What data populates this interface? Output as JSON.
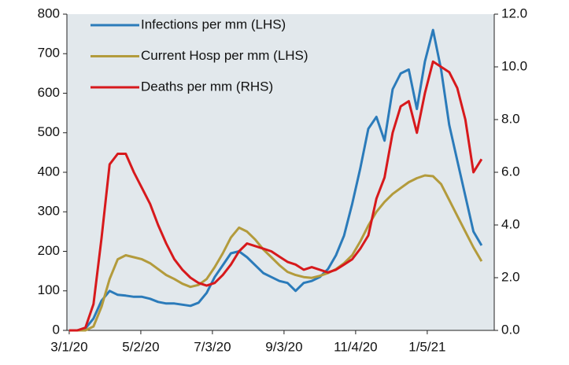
{
  "chart_data": {
    "type": "line",
    "x": [
      "3/1/20",
      "3/8/20",
      "3/15/20",
      "3/22/20",
      "3/29/20",
      "4/5/20",
      "4/12/20",
      "4/19/20",
      "4/26/20",
      "5/3/20",
      "5/10/20",
      "5/17/20",
      "5/24/20",
      "5/31/20",
      "6/7/20",
      "6/14/20",
      "6/21/20",
      "6/28/20",
      "7/5/20",
      "7/12/20",
      "7/19/20",
      "7/26/20",
      "8/2/20",
      "8/9/20",
      "8/16/20",
      "8/23/20",
      "8/30/20",
      "9/6/20",
      "9/13/20",
      "9/20/20",
      "9/27/20",
      "10/4/20",
      "10/11/20",
      "10/18/20",
      "10/25/20",
      "11/1/20",
      "11/8/20",
      "11/15/20",
      "11/22/20",
      "11/29/20",
      "12/6/20",
      "12/13/20",
      "12/20/20",
      "12/27/20",
      "1/3/21",
      "1/10/21",
      "1/17/21",
      "1/24/21",
      "1/31/21",
      "2/7/21",
      "2/14/21",
      "2/21/21"
    ],
    "series": [
      {
        "name": "Infections per mm (LHS)",
        "color": "#2b7bba",
        "values": [
          0,
          0,
          5,
          30,
          75,
          100,
          90,
          88,
          85,
          85,
          80,
          72,
          68,
          68,
          65,
          62,
          70,
          95,
          135,
          165,
          195,
          200,
          185,
          165,
          145,
          135,
          125,
          120,
          100,
          120,
          125,
          135,
          155,
          190,
          240,
          320,
          410,
          510,
          540,
          480,
          610,
          650,
          660,
          560,
          680,
          760,
          660,
          520,
          430,
          340,
          250,
          215
        ]
      },
      {
        "name": "Current Hosp per mm (LHS)",
        "color": "#b39b3c",
        "values": [
          0,
          0,
          0,
          10,
          60,
          130,
          180,
          190,
          185,
          180,
          170,
          155,
          140,
          130,
          118,
          110,
          115,
          130,
          160,
          195,
          235,
          260,
          250,
          230,
          205,
          185,
          165,
          148,
          140,
          135,
          133,
          138,
          145,
          155,
          170,
          190,
          225,
          265,
          300,
          325,
          345,
          360,
          375,
          385,
          392,
          390,
          370,
          330,
          290,
          250,
          210,
          175
        ]
      },
      {
        "name": "Deaths per mm (RHS)",
        "color": "#d7191c",
        "axis": "y2",
        "values": [
          0,
          0,
          0.1,
          1,
          3.5,
          6.3,
          6.7,
          6.7,
          6.0,
          5.4,
          4.8,
          4.0,
          3.3,
          2.7,
          2.3,
          2.0,
          1.8,
          1.7,
          1.8,
          2.1,
          2.5,
          3.0,
          3.3,
          3.2,
          3.1,
          3.0,
          2.8,
          2.6,
          2.5,
          2.3,
          2.4,
          2.3,
          2.2,
          2.3,
          2.5,
          2.7,
          3.1,
          3.6,
          5.0,
          5.8,
          7.5,
          8.5,
          8.7,
          7.5,
          9.0,
          10.2,
          10.0,
          9.8,
          9.2,
          8.0,
          6.0,
          6.5
        ]
      }
    ],
    "xlim": [
      "2/28/20",
      "3/4/21"
    ],
    "xticks": [
      "3/1/20",
      "5/2/20",
      "7/3/20",
      "9/3/20",
      "11/4/20",
      "1/5/21"
    ],
    "ylim": [
      0,
      800
    ],
    "yticks": [
      0,
      100,
      200,
      300,
      400,
      500,
      600,
      700,
      800
    ],
    "y2lim": [
      0,
      12
    ],
    "y2ticks": [
      {
        "value": 0,
        "label": "0.0"
      },
      {
        "value": 2,
        "label": "2.0"
      },
      {
        "value": 4,
        "label": "4.0"
      },
      {
        "value": 6,
        "label": "6.0"
      },
      {
        "value": 8,
        "label": "8.0"
      },
      {
        "value": 10,
        "label": "10.0"
      },
      {
        "value": 12,
        "label": "12.0"
      }
    ],
    "legend": "upper left"
  }
}
